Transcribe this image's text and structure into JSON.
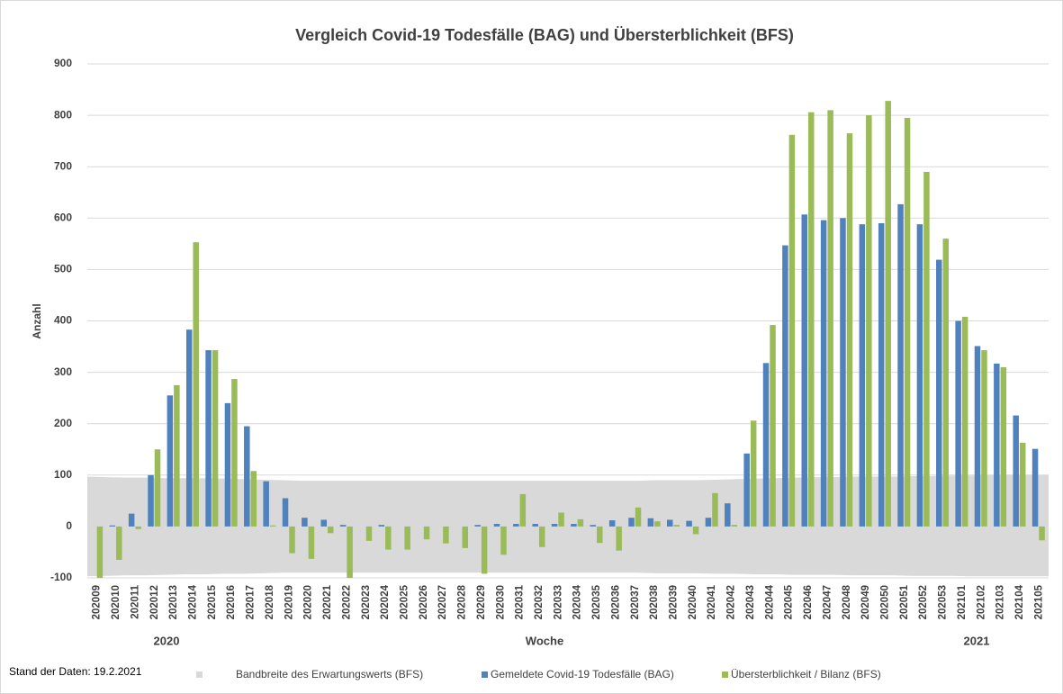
{
  "chart_data": {
    "type": "bar",
    "title": "Vergleich Covid-19 Todesfälle (BAG) und Übersterblichkeit (BFS)",
    "x_label": "Woche",
    "y_label": "Anzahl",
    "groups": [
      "2020",
      "2021"
    ],
    "note": "Stand der Daten: 19.2.2021",
    "categories": [
      "202009",
      "202010",
      "202011",
      "202012",
      "202013",
      "202014",
      "202015",
      "202016",
      "202017",
      "202018",
      "202019",
      "202020",
      "202021",
      "202022",
      "202023",
      "202024",
      "202025",
      "202026",
      "202027",
      "202028",
      "202029",
      "202030",
      "202031",
      "202032",
      "202033",
      "202034",
      "202035",
      "202036",
      "202037",
      "202038",
      "202039",
      "202040",
      "202041",
      "202042",
      "202043",
      "202044",
      "202045",
      "202046",
      "202047",
      "202048",
      "202049",
      "202050",
      "202051",
      "202052",
      "202053",
      "202101",
      "202102",
      "202103",
      "202104",
      "202105"
    ],
    "band": {
      "name": "Bandbreite des Erwartungswerts (BFS)",
      "color": "#d9d9d9",
      "upper": [
        97,
        96,
        95,
        95,
        94,
        94,
        94,
        93,
        92,
        91,
        90,
        89,
        89,
        89,
        89,
        89,
        89,
        89,
        89,
        89,
        89,
        89,
        89,
        89,
        89,
        89,
        89,
        89,
        89,
        90,
        90,
        90,
        91,
        92,
        93,
        94,
        95,
        96,
        96,
        97,
        97,
        97,
        98,
        98,
        99,
        99,
        100,
        100,
        100,
        100
      ],
      "lower": [
        -97,
        -96,
        -95,
        -95,
        -94,
        -93,
        -93,
        -92,
        -92,
        -91,
        -90,
        -90,
        -90,
        -90,
        -90,
        -90,
        -90,
        -90,
        -90,
        -90,
        -90,
        -90,
        -90,
        -90,
        -90,
        -90,
        -90,
        -90,
        -90,
        -91,
        -91,
        -91,
        -92,
        -92,
        -93,
        -93,
        -94,
        -94,
        -94,
        -95,
        -95,
        -95,
        -96,
        -96,
        -96,
        -97,
        -97,
        -97,
        -97,
        -97
      ]
    },
    "series": [
      {
        "name": "Gemeldete Covid-19 Todesfälle (BAG)",
        "color": "#4f81bd",
        "values": [
          0,
          2,
          25,
          100,
          255,
          383,
          343,
          240,
          195,
          88,
          55,
          17,
          13,
          3,
          0,
          3,
          0,
          0,
          0,
          0,
          3,
          5,
          5,
          5,
          5,
          5,
          3,
          12,
          17,
          16,
          13,
          11,
          17,
          45,
          142,
          318,
          547,
          607,
          596,
          600,
          588,
          590,
          627,
          588,
          519,
          400,
          351,
          317,
          216,
          151
        ]
      },
      {
        "name": "Übersterblichkeit / Bilanz (BFS)",
        "color": "#9bbb59",
        "values": [
          -100,
          -65,
          -5,
          150,
          275,
          553,
          343,
          287,
          108,
          2,
          -52,
          -63,
          -13,
          -100,
          -28,
          -45,
          -45,
          -25,
          -33,
          -42,
          -92,
          -55,
          63,
          -40,
          27,
          14,
          -32,
          -47,
          37,
          10,
          3,
          -15,
          65,
          3,
          206,
          392,
          762,
          806,
          810,
          765,
          800,
          828,
          795,
          690,
          560,
          408,
          343,
          310,
          163,
          -27
        ]
      }
    ],
    "ylim": [
      -100,
      900
    ],
    "yticks": [
      -100,
      0,
      100,
      200,
      300,
      400,
      500,
      600,
      700,
      800,
      900
    ],
    "grid": true
  }
}
